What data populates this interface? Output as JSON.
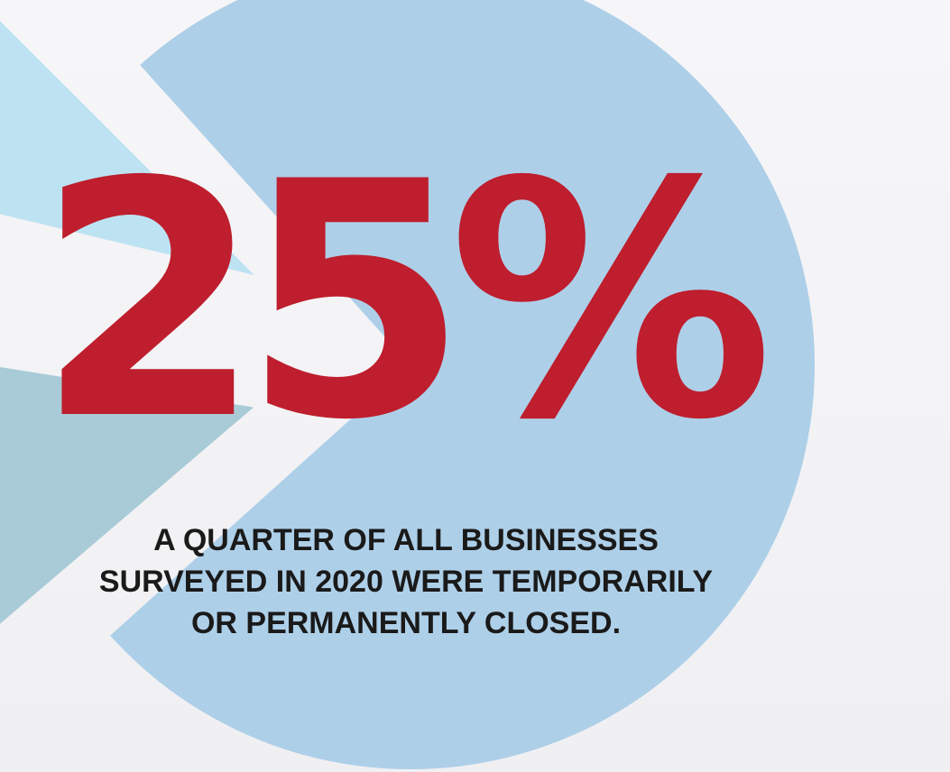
{
  "chart_data": {
    "type": "pie",
    "title": "",
    "slices": [
      {
        "value": 75,
        "color": "#aecfe8"
      },
      {
        "value": 15,
        "color": "#a9cbd7"
      },
      {
        "value": 10,
        "color": "#bde2f2"
      }
    ],
    "exploded_gap_color": "#f4f4f6"
  },
  "headline": {
    "value": "25%",
    "color": "#be1e2d"
  },
  "caption": {
    "line1": "A QUARTER OF ALL BUSINESSES",
    "line2": "SURVEYED IN 2020 WERE TEMPORARILY",
    "line3": "OR PERMANENTLY CLOSED."
  }
}
